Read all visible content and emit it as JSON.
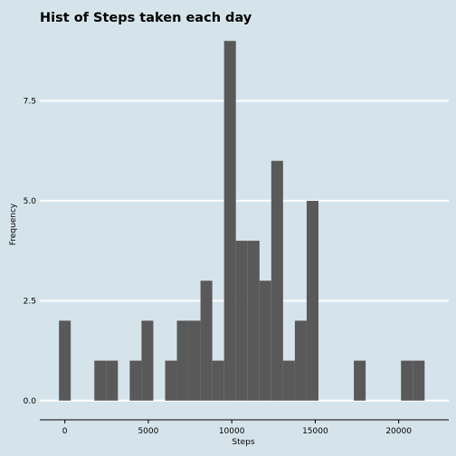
{
  "chart_data": {
    "type": "bar",
    "title": "Hist of Steps taken each day",
    "xlabel": "Steps",
    "ylabel": "Frequency",
    "xlim": [
      -1500,
      23000
    ],
    "ylim": [
      -0.3,
      9.3
    ],
    "bin_width": 706.7,
    "x_ticks": [
      0,
      5000,
      10000,
      15000,
      20000
    ],
    "y_ticks": [
      0.0,
      2.5,
      5.0,
      7.5
    ],
    "x_tick_labels": [
      "0",
      "5000",
      "10000",
      "15000",
      "20000"
    ],
    "y_tick_labels": [
      "0.0",
      "2.5",
      "5.0",
      "7.5"
    ],
    "bins": [
      {
        "x": 0,
        "count": 2
      },
      {
        "x": 2120,
        "count": 1
      },
      {
        "x": 2827,
        "count": 1
      },
      {
        "x": 4240,
        "count": 1
      },
      {
        "x": 4947,
        "count": 2
      },
      {
        "x": 6360,
        "count": 1
      },
      {
        "x": 7067,
        "count": 2
      },
      {
        "x": 7773,
        "count": 2
      },
      {
        "x": 8480,
        "count": 3
      },
      {
        "x": 9187,
        "count": 1
      },
      {
        "x": 9893,
        "count": 9
      },
      {
        "x": 10600,
        "count": 4
      },
      {
        "x": 11307,
        "count": 4
      },
      {
        "x": 12013,
        "count": 3
      },
      {
        "x": 12720,
        "count": 6
      },
      {
        "x": 13427,
        "count": 1
      },
      {
        "x": 14133,
        "count": 2
      },
      {
        "x": 14840,
        "count": 5
      },
      {
        "x": 17667,
        "count": 1
      },
      {
        "x": 20493,
        "count": 1
      },
      {
        "x": 21200,
        "count": 1
      }
    ],
    "grid": "horizontal-major",
    "legend": "none",
    "colors": {
      "background": "#d5e4eb",
      "bar": "#595959",
      "grid": "#ffffff",
      "axis": "#000000"
    }
  }
}
